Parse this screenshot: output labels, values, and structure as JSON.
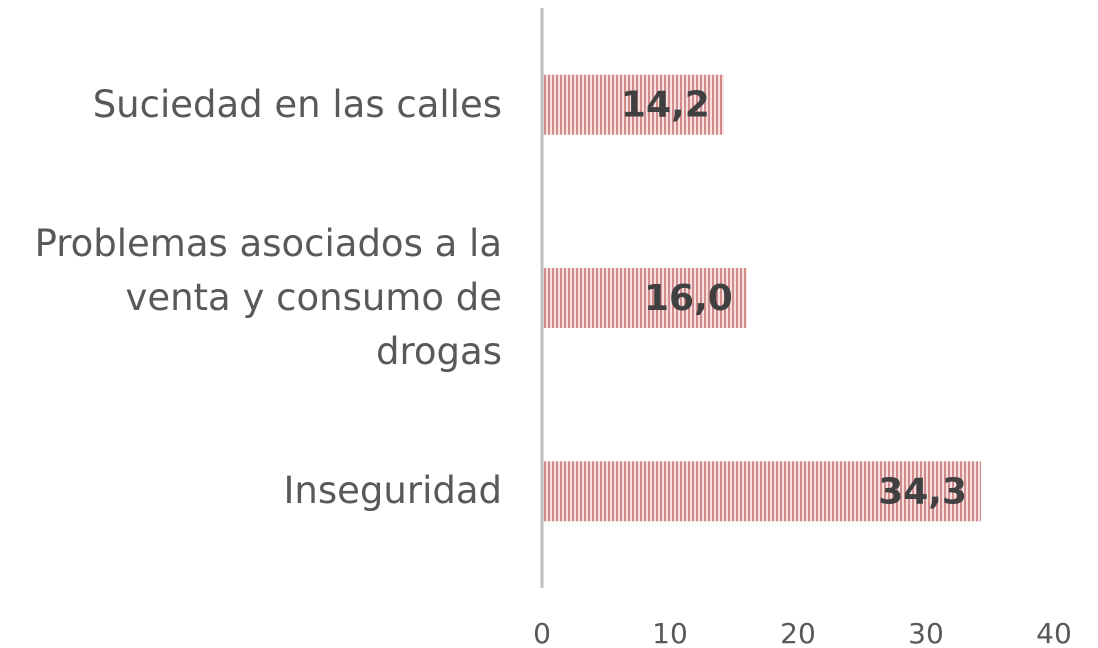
{
  "chart_data": {
    "type": "bar",
    "orientation": "horizontal",
    "categories": [
      "Suciedad en las calles",
      "Problemas asociados a la venta y consumo de drogas",
      "Inseguridad"
    ],
    "values": [
      14.2,
      16.0,
      34.3
    ],
    "value_labels": [
      "14,2",
      "16,0",
      "34,3"
    ],
    "color": "#d28a8a",
    "xlim": [
      0,
      40
    ],
    "xticks": [
      0,
      10,
      20,
      30,
      40
    ]
  }
}
